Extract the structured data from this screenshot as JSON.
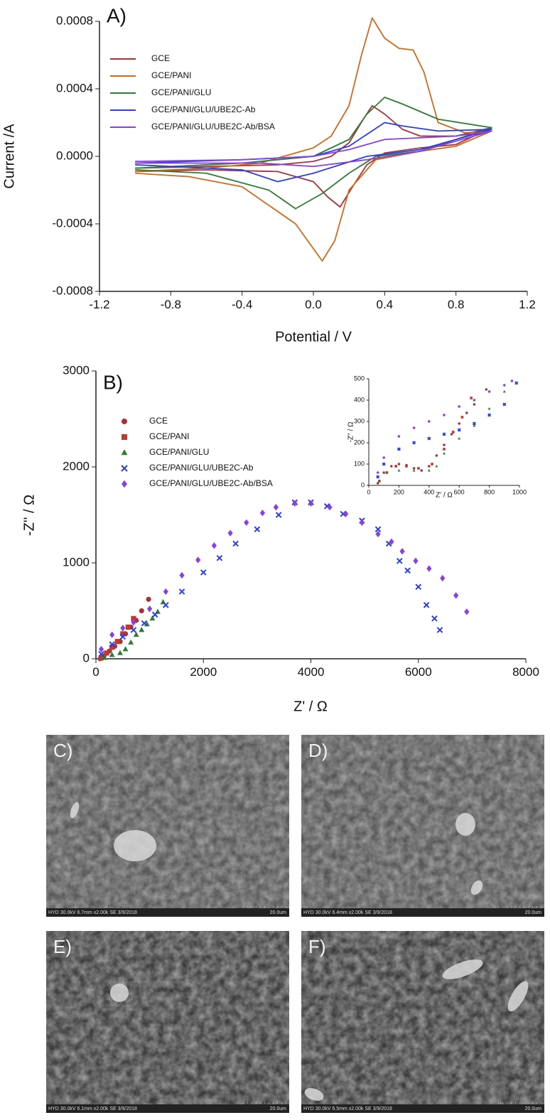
{
  "chart_data": [
    {
      "type": "line",
      "title": "A)",
      "xlabel": "Potential / V",
      "ylabel": "Current /A",
      "xlim": [
        -1.2,
        1.2
      ],
      "xticks": [
        -1.2,
        -0.8,
        -0.4,
        {
          "value": 0,
          "label": "0.0"
        },
        0.4,
        0.8,
        1.2
      ],
      "ylim": [
        -0.0008,
        0.0008
      ],
      "yticks": [
        -0.0008,
        -0.0004,
        {
          "value": 0,
          "label": "0.0000"
        },
        0.0004,
        0.0008
      ],
      "legend": "upper left",
      "series": [
        {
          "name": "GCE",
          "color": "#a8323a",
          "x": [
            -1,
            -0.6,
            -0.2,
            0,
            0.1,
            0.2,
            0.28,
            0.33,
            0.4,
            0.5,
            0.6,
            0.8,
            1.0,
            0.8,
            0.6,
            0.4,
            0.3,
            0.22,
            0.15,
            0.08,
            0,
            -0.2,
            -0.6,
            -1
          ],
          "values": [
            -7e-05,
            -6e-05,
            -5e-05,
            -3e-05,
            0,
            8e-05,
            0.00022,
            0.0003,
            0.00025,
            0.00016,
            0.00012,
            0.00012,
            0.00017,
            7e-05,
            5e-05,
            2e-05,
            -5e-05,
            -0.00018,
            -0.0003,
            -0.00024,
            -0.00015,
            -9e-05,
            -8e-05,
            -9e-05
          ]
        },
        {
          "name": "GCE/PANI",
          "color": "#d2691e",
          "x": [
            -1,
            -0.6,
            -0.3,
            0,
            0.1,
            0.2,
            0.27,
            0.33,
            0.4,
            0.48,
            0.56,
            0.62,
            0.7,
            0.85,
            1.0,
            0.8,
            0.6,
            0.35,
            0.2,
            0.12,
            0.05,
            -0.1,
            -0.4,
            -0.7,
            -1
          ],
          "values": [
            -9e-05,
            -7e-05,
            -4e-05,
            5e-05,
            0.00012,
            0.0003,
            0.0006,
            0.00082,
            0.0007,
            0.00064,
            0.00063,
            0.0005,
            0.0002,
            0.00014,
            0.00015,
            6e-05,
            3e-05,
            -2e-05,
            -0.0002,
            -0.0005,
            -0.00062,
            -0.0004,
            -0.00018,
            -0.00012,
            -0.0001
          ]
        },
        {
          "name": "GCE/PANI/GLU",
          "color": "#2e7d32",
          "x": [
            -1,
            -0.4,
            0,
            0.2,
            0.3,
            0.4,
            0.5,
            0.7,
            1.0,
            0.6,
            0.35,
            0.2,
            0.05,
            -0.1,
            -0.25,
            -0.6,
            -1
          ],
          "values": [
            -7e-05,
            -4e-05,
            0,
            0.0001,
            0.00025,
            0.00035,
            0.00031,
            0.00022,
            0.00017,
            3e-05,
            0,
            -0.0001,
            -0.00022,
            -0.00031,
            -0.0002,
            -0.0001,
            -8e-05
          ]
        },
        {
          "name": "GCE/PANI/GLU/UBE2C-Ab",
          "color": "#2a3fe0",
          "x": [
            -1,
            -0.4,
            0,
            0.2,
            0.3,
            0.4,
            0.5,
            0.7,
            1.0,
            0.6,
            0.3,
            0,
            -0.2,
            -0.4,
            -1
          ],
          "values": [
            -4e-05,
            -2e-05,
            0,
            6e-05,
            0.00013,
            0.0002,
            0.00018,
            0.00015,
            0.00016,
            4e-05,
            0,
            -0.0001,
            -0.00015,
            -8e-05,
            -5e-05
          ]
        },
        {
          "name": "GCE/PANI/GLU/UBE2C-Ab/BSA",
          "color": "#8a3fe0",
          "x": [
            -1,
            -0.4,
            0,
            0.2,
            0.4,
            0.6,
            0.8,
            1.0,
            0.6,
            0.3,
            0,
            -0.3,
            -1
          ],
          "values": [
            -3e-05,
            -2e-05,
            0,
            4e-05,
            0.0001,
            0.00011,
            0.00012,
            0.00015,
            3e-05,
            -2e-05,
            -6e-05,
            -4e-05,
            -4e-05
          ]
        }
      ]
    },
    {
      "type": "scatter",
      "title": "B)",
      "xlabel": "Z' / Ω",
      "ylabel": "-Z'' / Ω",
      "xlim": [
        0,
        8000
      ],
      "xticks": [
        0,
        2000,
        4000,
        6000,
        8000
      ],
      "ylim": [
        0,
        3000
      ],
      "yticks": [
        0,
        1000,
        2000,
        3000
      ],
      "legend": "upper left",
      "series": [
        {
          "name": "GCE",
          "color": "#a8323a",
          "marker": "circle",
          "x": [
            80,
            150,
            250,
            350,
            450,
            550,
            650,
            750,
            850,
            980
          ],
          "values": [
            0,
            30,
            80,
            130,
            180,
            260,
            330,
            400,
            500,
            620
          ]
        },
        {
          "name": "GCE/PANI",
          "color": "#c0392b",
          "marker": "square",
          "x": [
            100,
            200,
            300,
            400,
            500,
            600,
            700
          ],
          "values": [
            10,
            60,
            120,
            180,
            260,
            330,
            420
          ]
        },
        {
          "name": "GCE/PANI/GLU",
          "color": "#2e7d32",
          "marker": "triangle",
          "x": [
            150,
            300,
            450,
            550,
            650,
            750,
            850,
            950,
            1050,
            1150,
            1250
          ],
          "values": [
            10,
            40,
            60,
            100,
            170,
            250,
            300,
            360,
            420,
            490,
            590
          ]
        },
        {
          "name": "GCE/PANI/GLU/UBE2C-Ab",
          "color": "#2a3fe0",
          "marker": "x",
          "x": [
            100,
            300,
            500,
            700,
            900,
            1100,
            1300,
            1600,
            2000,
            2300,
            2600,
            3000,
            3400,
            3700,
            4000,
            4300,
            4600,
            4950,
            5250,
            5450,
            5650,
            5800,
            6000,
            6150,
            6300,
            6400
          ],
          "values": [
            50,
            150,
            230,
            300,
            370,
            460,
            560,
            700,
            900,
            1050,
            1200,
            1350,
            1500,
            1630,
            1630,
            1590,
            1510,
            1440,
            1350,
            1200,
            1020,
            920,
            750,
            560,
            420,
            300
          ]
        },
        {
          "name": "GCE/PANI/GLU/UBE2C-Ab/BSA",
          "color": "#8a3fe0",
          "marker": "diamond",
          "x": [
            100,
            300,
            500,
            700,
            1000,
            1300,
            1600,
            1900,
            2200,
            2500,
            2800,
            3100,
            3350,
            3700,
            4000,
            4350,
            4650,
            4950,
            5250,
            5500,
            5700,
            5950,
            6200,
            6450,
            6700,
            6900
          ],
          "values": [
            100,
            250,
            320,
            380,
            520,
            700,
            870,
            1030,
            1180,
            1310,
            1420,
            1520,
            1580,
            1620,
            1620,
            1580,
            1510,
            1420,
            1300,
            1220,
            1120,
            1020,
            940,
            840,
            660,
            490
          ]
        }
      ]
    },
    {
      "type": "scatter",
      "xlabel": "Z' / Ω",
      "ylabel": "-Z'' / Ω",
      "xlim": [
        0,
        1000
      ],
      "xticks": [
        0,
        200,
        400,
        600,
        800,
        1000
      ],
      "ylim": [
        0,
        500
      ],
      "yticks": [
        0,
        100,
        200,
        300,
        400,
        500
      ],
      "series": [
        {
          "color": "#a8323a",
          "marker": "circle",
          "x": [
            60,
            100,
            150,
            200,
            250,
            300,
            350,
            400,
            450,
            500,
            550,
            600,
            650,
            700,
            780
          ],
          "values": [
            10,
            60,
            90,
            100,
            95,
            80,
            70,
            90,
            140,
            190,
            240,
            290,
            340,
            380,
            450
          ]
        },
        {
          "color": "#c0392b",
          "marker": "square",
          "x": [
            70,
            120,
            180,
            250,
            330,
            420,
            500,
            560,
            620,
            680
          ],
          "values": [
            20,
            60,
            90,
            90,
            80,
            100,
            170,
            250,
            320,
            410
          ]
        },
        {
          "color": "#2e7d32",
          "marker": "triangle",
          "x": [
            70,
            120,
            200,
            300,
            400,
            450,
            500,
            600,
            700,
            800,
            900
          ],
          "values": [
            20,
            60,
            70,
            70,
            70,
            90,
            150,
            220,
            280,
            360,
            440
          ]
        },
        {
          "color": "#2a3fe0",
          "marker": "x",
          "x": [
            60,
            100,
            200,
            300,
            400,
            500,
            600,
            700,
            800,
            900,
            980
          ],
          "values": [
            40,
            100,
            170,
            200,
            220,
            240,
            260,
            290,
            330,
            380,
            480
          ]
        },
        {
          "color": "#8a3fe0",
          "marker": "circle",
          "x": [
            60,
            100,
            200,
            300,
            400,
            500,
            600,
            700,
            800,
            900,
            950
          ],
          "values": [
            60,
            130,
            230,
            270,
            300,
            330,
            370,
            400,
            440,
            470,
            490
          ]
        }
      ]
    }
  ],
  "images": [
    {
      "label": "C)",
      "info": "HYD 30.0kV 6.7mm x2.00k SE 3/9/2018",
      "scale": "20.0um"
    },
    {
      "label": "D)",
      "info": "HYD 30.0kV 6.4mm x2.00k SE 3/9/2018",
      "scale": "20.0um"
    },
    {
      "label": "E)",
      "info": "HYD 30.0kV 6.1mm x2.00k SE 3/9/2018",
      "scale": "20.0um"
    },
    {
      "label": "F)",
      "info": "HYD 30.0kV 6.5mm x2.00k SE 3/9/2018",
      "scale": "20.0um"
    }
  ]
}
